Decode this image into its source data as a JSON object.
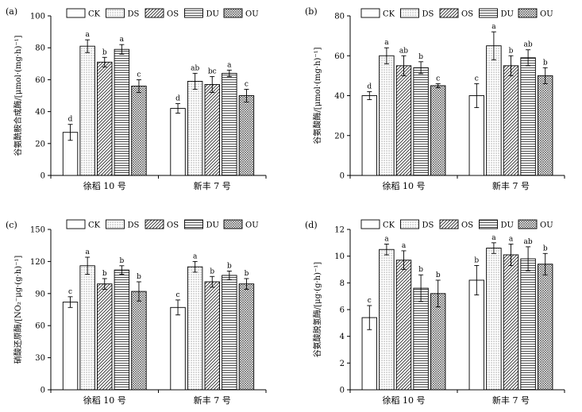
{
  "legend": [
    {
      "code": "CK",
      "pattern": "blank"
    },
    {
      "code": "DS",
      "pattern": "dots"
    },
    {
      "code": "OS",
      "pattern": "diag"
    },
    {
      "code": "DU",
      "pattern": "hlines"
    },
    {
      "code": "OU",
      "pattern": "cross"
    }
  ],
  "chart_data": [
    {
      "type": "bar",
      "panel": "(a)",
      "categories": [
        "徐稻 10 号",
        "新丰 7 号"
      ],
      "ylabel": "谷氨酰胺合成酶/[μmol·(mg·h)⁻¹]",
      "ylim": [
        0,
        100
      ],
      "yticks": [
        0,
        20,
        40,
        60,
        80,
        100
      ],
      "series": [
        {
          "name": "CK",
          "values": [
            27,
            42
          ],
          "errors": [
            5,
            3
          ],
          "letters": [
            "d",
            "d"
          ]
        },
        {
          "name": "DS",
          "values": [
            81,
            59
          ],
          "errors": [
            4,
            5
          ],
          "letters": [
            "a",
            "ab"
          ]
        },
        {
          "name": "OS",
          "values": [
            71,
            57
          ],
          "errors": [
            3,
            5
          ],
          "letters": [
            "b",
            "bc"
          ]
        },
        {
          "name": "DU",
          "values": [
            79,
            64
          ],
          "errors": [
            3,
            2
          ],
          "letters": [
            "a",
            "a"
          ]
        },
        {
          "name": "OU",
          "values": [
            56,
            50
          ],
          "errors": [
            4,
            4
          ],
          "letters": [
            "c",
            "c"
          ]
        }
      ]
    },
    {
      "type": "bar",
      "panel": "(b)",
      "categories": [
        "徐稻 10 号",
        "新丰 7 号"
      ],
      "ylabel": "谷氨酸酶/[μmol·(mg·h)⁻¹]",
      "ylim": [
        0,
        80
      ],
      "yticks": [
        0,
        20,
        40,
        60,
        80
      ],
      "series": [
        {
          "name": "CK",
          "values": [
            40,
            40
          ],
          "errors": [
            2,
            6
          ],
          "letters": [
            "d",
            "c"
          ]
        },
        {
          "name": "DS",
          "values": [
            60,
            65
          ],
          "errors": [
            4,
            7
          ],
          "letters": [
            "a",
            "a"
          ]
        },
        {
          "name": "OS",
          "values": [
            55,
            55
          ],
          "errors": [
            5,
            5
          ],
          "letters": [
            "ab",
            "b"
          ]
        },
        {
          "name": "DU",
          "values": [
            54,
            59
          ],
          "errors": [
            3,
            4
          ],
          "letters": [
            "b",
            "ab"
          ]
        },
        {
          "name": "OU",
          "values": [
            45,
            50
          ],
          "errors": [
            1,
            4
          ],
          "letters": [
            "c",
            "b"
          ]
        }
      ]
    },
    {
      "type": "bar",
      "panel": "(c)",
      "categories": [
        "徐稻 10 号",
        "新丰 7 号"
      ],
      "ylabel": "硝酸还原酶/[NO₂⁻μg·(g·h)⁻¹]",
      "ylim": [
        0,
        150
      ],
      "yticks": [
        0,
        30,
        60,
        90,
        120,
        150
      ],
      "series": [
        {
          "name": "CK",
          "values": [
            82,
            77
          ],
          "errors": [
            5,
            7
          ],
          "letters": [
            "c",
            "c"
          ]
        },
        {
          "name": "DS",
          "values": [
            116,
            115
          ],
          "errors": [
            8,
            5
          ],
          "letters": [
            "a",
            "a"
          ]
        },
        {
          "name": "OS",
          "values": [
            99,
            101
          ],
          "errors": [
            5,
            5
          ],
          "letters": [
            "b",
            "b"
          ]
        },
        {
          "name": "DU",
          "values": [
            112,
            107
          ],
          "errors": [
            4,
            4
          ],
          "letters": [
            "b",
            "b"
          ]
        },
        {
          "name": "OU",
          "values": [
            92,
            99
          ],
          "errors": [
            9,
            5
          ],
          "letters": [
            "b",
            "b"
          ]
        }
      ]
    },
    {
      "type": "bar",
      "panel": "(d)",
      "categories": [
        "徐稻 10 号",
        "新丰 7 号"
      ],
      "ylabel": "谷氨酸脱氢酶/[μg·(g·h)⁻¹]",
      "ylim": [
        0,
        12
      ],
      "yticks": [
        0,
        2,
        4,
        6,
        8,
        10,
        12
      ],
      "series": [
        {
          "name": "CK",
          "values": [
            5.4,
            8.2
          ],
          "errors": [
            0.9,
            1.1
          ],
          "letters": [
            "c",
            "b"
          ]
        },
        {
          "name": "DS",
          "values": [
            10.5,
            10.6
          ],
          "errors": [
            0.4,
            0.4
          ],
          "letters": [
            "a",
            "a"
          ]
        },
        {
          "name": "OS",
          "values": [
            9.7,
            10.1
          ],
          "errors": [
            0.7,
            0.8
          ],
          "letters": [
            "a",
            "a"
          ]
        },
        {
          "name": "DU",
          "values": [
            7.6,
            9.8
          ],
          "errors": [
            1.0,
            0.9
          ],
          "letters": [
            "b",
            "ab"
          ]
        },
        {
          "name": "OU",
          "values": [
            7.2,
            9.4
          ],
          "errors": [
            1.0,
            0.8
          ],
          "letters": [
            "b",
            "b"
          ]
        }
      ]
    }
  ]
}
